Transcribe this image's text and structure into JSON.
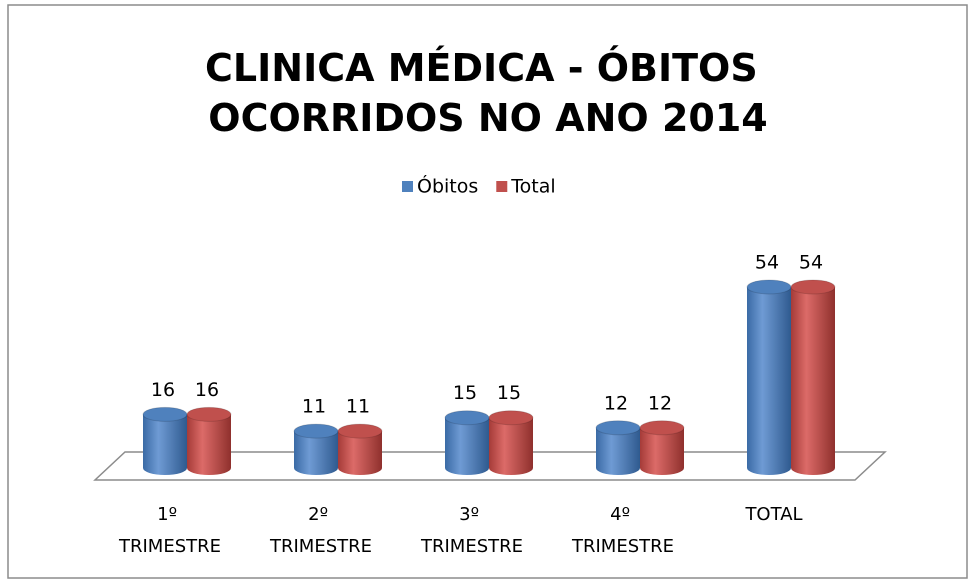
{
  "chart_data": {
    "type": "bar",
    "title": "CLINICA MÉDICA - ÓBITOS OCORRIDOS NO ANO 2014",
    "categories": [
      "1º TRIMESTRE",
      "2º TRIMESTRE",
      "3º TRIMESTRE",
      "4º TRIMESTRE",
      "TOTAL"
    ],
    "series": [
      {
        "name": "Óbitos",
        "color": "#4f81bd",
        "values": [
          16,
          11,
          15,
          12,
          54
        ]
      },
      {
        "name": "Total",
        "color": "#c0504d",
        "values": [
          16,
          11,
          15,
          12,
          54
        ]
      }
    ],
    "legend": "top"
  }
}
